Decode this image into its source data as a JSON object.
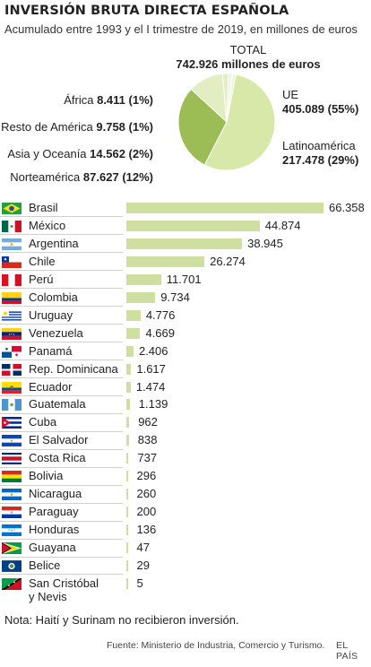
{
  "title": "INVERSIÓN BRUTA DIRECTA ESPAÑOLA",
  "subtitle": "Acumulado entre 1993 y el I trimestre de 2019, en millones de euros",
  "total_label": "TOTAL",
  "total_value": "742.926 millones de euros",
  "note": "Nota: Haití y Surinam no recibieron inversión.",
  "source": "Fuente: Ministerio de Industria, Comercio y Turismo.",
  "brand": "EL PAÍS",
  "colors": {
    "bar": "#cfdf9f",
    "ue": "#d8e8a8",
    "latam": "#9cbd55",
    "asia": "#e2eec2",
    "other": "#eef5dc"
  },
  "chart_data": [
    {
      "type": "pie",
      "slices": [
        {
          "name": "UE",
          "value": 405089,
          "value_label": "405.089",
          "pct_label": "(55%)"
        },
        {
          "name": "Latinoamérica",
          "value": 217478,
          "value_label": "217.478",
          "pct_label": "(29%)"
        },
        {
          "name": "Norteamérica",
          "value": 87627,
          "value_label": "87.627",
          "pct_label": "(12%)"
        },
        {
          "name": "Asia y Oceanía",
          "value": 14562,
          "value_label": "14.562",
          "pct_label": "(2%)"
        },
        {
          "name": "Resto de América",
          "value": 9758,
          "value_label": "9.758",
          "pct_label": "(1%)"
        },
        {
          "name": "África",
          "value": 8411,
          "value_label": "8.411",
          "pct_label": "(1%)"
        }
      ]
    },
    {
      "type": "bar",
      "orientation": "horizontal",
      "categories": [
        "Brasil",
        "México",
        "Argentina",
        "Chile",
        "Perú",
        "Colombia",
        "Uruguay",
        "Venezuela",
        "Panamá",
        "Rep. Dominicana",
        "Ecuador",
        "Guatemala",
        "Cuba",
        "El Salvador",
        "Costa Rica",
        "Bolivia",
        "Nicaragua",
        "Paraguay",
        "Honduras",
        "Guayana",
        "Belice",
        "San Cristóbal\ny Nevis"
      ],
      "values": [
        66358,
        44874,
        38945,
        26274,
        11701,
        9734,
        4776,
        4669,
        2406,
        1617,
        1474,
        1139,
        962,
        838,
        737,
        296,
        260,
        200,
        136,
        47,
        29,
        5
      ],
      "value_labels": [
        "66.358",
        "44.874",
        "38.945",
        "26.274",
        "11.701",
        "9.734",
        "4.776",
        "4.669",
        "2.406",
        "1.617",
        "1.474",
        "1.139",
        "962",
        "838",
        "737",
        "296",
        "260",
        "200",
        "136",
        "47",
        "29",
        "5"
      ],
      "flags": [
        "brazil-flag-icon",
        "mexico-flag-icon",
        "argentina-flag-icon",
        "chile-flag-icon",
        "peru-flag-icon",
        "colombia-flag-icon",
        "uruguay-flag-icon",
        "venezuela-flag-icon",
        "panama-flag-icon",
        "dominican-republic-flag-icon",
        "ecuador-flag-icon",
        "guatemala-flag-icon",
        "cuba-flag-icon",
        "el-salvador-flag-icon",
        "costa-rica-flag-icon",
        "bolivia-flag-icon",
        "nicaragua-flag-icon",
        "paraguay-flag-icon",
        "honduras-flag-icon",
        "guyana-flag-icon",
        "belize-flag-icon",
        "saint-kitts-and-nevis-flag-icon"
      ]
    }
  ]
}
